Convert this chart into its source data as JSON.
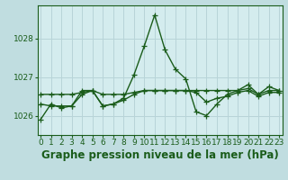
{
  "title": "Graphe pression niveau de la mer (hPa)",
  "background_color": "#c0dde0",
  "plot_bg_color": "#d4ecee",
  "grid_color": "#b8d4d8",
  "line_color": "#1a5c1a",
  "x_ticks": [
    0,
    1,
    2,
    3,
    4,
    5,
    6,
    7,
    8,
    9,
    10,
    11,
    12,
    13,
    14,
    15,
    16,
    17,
    18,
    19,
    20,
    21,
    22,
    23
  ],
  "y_ticks": [
    1026,
    1027,
    1028
  ],
  "ylim": [
    1025.5,
    1028.85
  ],
  "xlim": [
    -0.3,
    23.3
  ],
  "series": [
    [
      1025.9,
      1026.3,
      1026.2,
      1026.25,
      1026.65,
      1026.65,
      1026.25,
      1026.3,
      1026.45,
      1027.05,
      1027.8,
      1028.6,
      1027.7,
      1027.2,
      1026.95,
      1026.1,
      1026.0,
      1026.3,
      1026.55,
      1026.65,
      1026.8,
      1026.55,
      1026.75,
      1026.65
    ],
    [
      1026.3,
      1026.25,
      1026.25,
      1026.25,
      1026.55,
      1026.65,
      1026.25,
      1026.3,
      1026.4,
      1026.55,
      1026.65,
      1026.65,
      1026.65,
      1026.65,
      1026.65,
      1026.6,
      1026.35,
      1026.45,
      1026.5,
      1026.6,
      1026.65,
      1026.5,
      1026.6,
      1026.6
    ],
    [
      1026.55,
      1026.55,
      1026.55,
      1026.55,
      1026.6,
      1026.65,
      1026.55,
      1026.55,
      1026.55,
      1026.6,
      1026.65,
      1026.65,
      1026.65,
      1026.65,
      1026.65,
      1026.65,
      1026.65,
      1026.65,
      1026.65,
      1026.65,
      1026.7,
      1026.55,
      1026.65,
      1026.65
    ]
  ],
  "marker": "+",
  "marker_size": 4,
  "line_width": 1.0,
  "tick_fontsize": 6.5,
  "label_fontsize": 8.5
}
